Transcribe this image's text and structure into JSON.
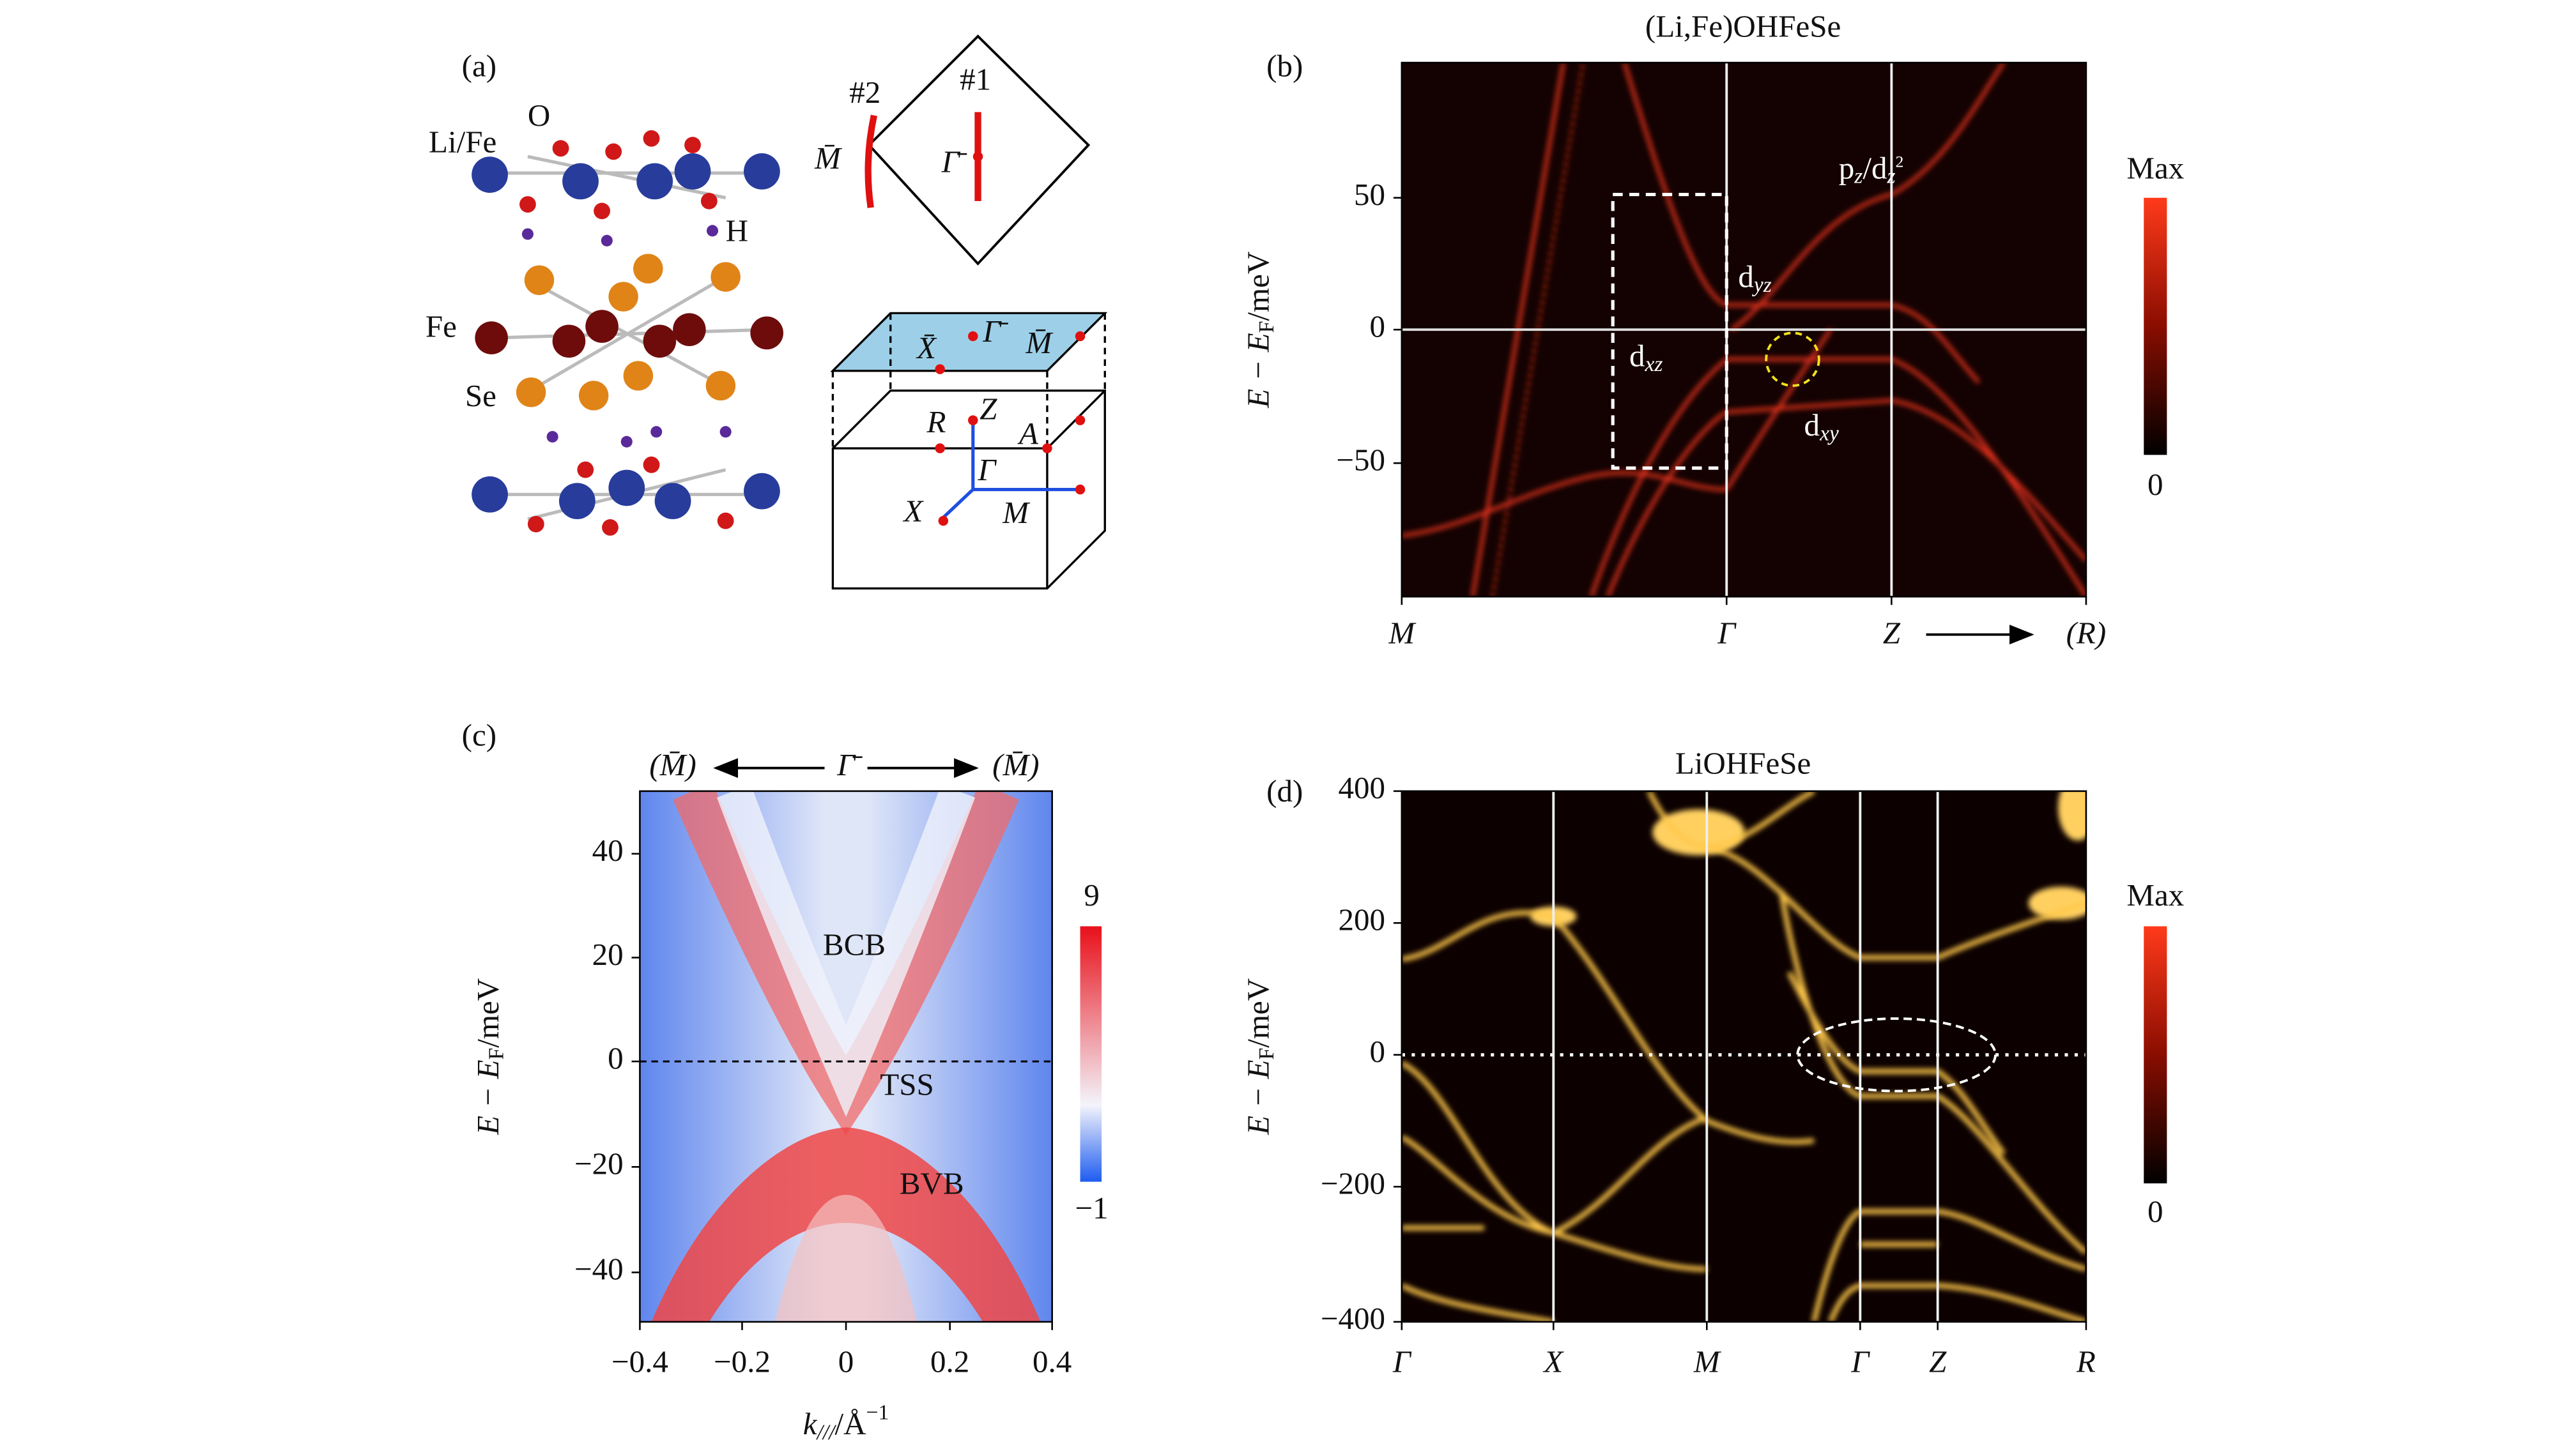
{
  "panel_a": {
    "label": "(a)",
    "atoms": {
      "li_fe": "Li/Fe",
      "o": "O",
      "h": "H",
      "fe": "Fe",
      "se": "Se"
    },
    "surface_bz": {
      "cut2": "#2",
      "cut1": "#1",
      "m_bar": "M̄",
      "gamma_bar": "Γ̄"
    },
    "bulk_bz": {
      "x_bar": "X̄",
      "gamma_bar": "Γ̄",
      "m_bar": "M̄",
      "r": "R",
      "z": "Z",
      "a": "A",
      "gamma": "Γ",
      "x": "X",
      "m": "M"
    }
  },
  "panel_b": {
    "label": "(b)",
    "title": "(Li,Fe)OHFeSe",
    "y_label": {
      "e": "E − E",
      "sub": "F",
      "unit": "/meV"
    },
    "yticks": [
      "50",
      "0",
      "−50"
    ],
    "xticks": [
      "M",
      "Γ",
      "Z",
      "(R)"
    ],
    "annotations": {
      "pz": {
        "a": "p",
        "a_sub": "z",
        "b": "/d",
        "b_sub": "z",
        "b_sup": "2"
      },
      "dyz": {
        "main": "d",
        "sub": "yz"
      },
      "dxz": {
        "main": "d",
        "sub": "xz"
      },
      "dxy": {
        "main": "d",
        "sub": "xy"
      }
    },
    "colorbar": {
      "max": "Max",
      "min": "0"
    }
  },
  "panel_c": {
    "label": "(c)",
    "top": {
      "left": "(M̄)",
      "center": "Γ̄",
      "right": "(M̄)"
    },
    "y_label": {
      "e": "E − E",
      "sub": "F",
      "unit": "/meV"
    },
    "yticks": [
      "40",
      "20",
      "0",
      "−20",
      "−40"
    ],
    "xticks": [
      "−0.4",
      "−0.2",
      "0",
      "0.2",
      "0.4"
    ],
    "x_label": {
      "k": "k",
      "sub": "///",
      "unit": "/Å",
      "sup": "−1"
    },
    "annotations": {
      "bcb": "BCB",
      "tss": "TSS",
      "bvb": "BVB"
    },
    "colorbar": {
      "max": "9",
      "min": "−1"
    }
  },
  "panel_d": {
    "label": "(d)",
    "title": "LiOHFeSe",
    "y_label": {
      "e": "E − E",
      "sub": "F",
      "unit": "/meV"
    },
    "yticks": [
      "400",
      "200",
      "0",
      "−200",
      "−400"
    ],
    "xticks": [
      "Γ",
      "X",
      "M",
      "Γ",
      "Z",
      "R"
    ],
    "colorbar": {
      "max": "Max",
      "min": "0"
    }
  }
}
